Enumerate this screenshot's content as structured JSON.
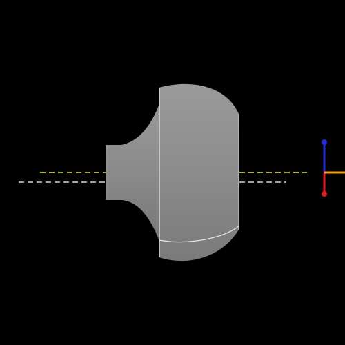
{
  "viewport": {
    "background": "#000000"
  },
  "model": {
    "shape": "knob-solid-of-revolution",
    "shading": "gray-gradient",
    "base_color": "#8f8f8f",
    "edge_color": "#e6e6e6"
  },
  "guides": {
    "yellow_line_color": "#f2e64a",
    "white_line_color": "#d8d8d8",
    "style": "dashed"
  },
  "axis_gizmo": {
    "icon": "axis-triad-icon",
    "z_axis_color": "#2a2ad6",
    "y_axis_color": "#e02020",
    "x_axis_color": "#f29a1a"
  }
}
